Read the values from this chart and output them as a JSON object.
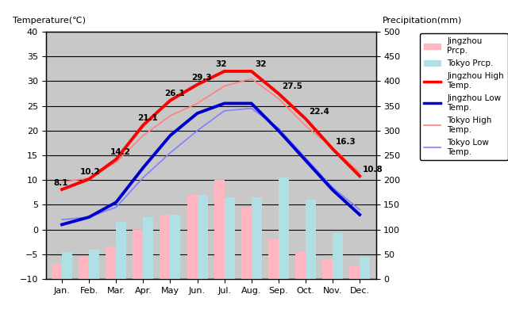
{
  "months": [
    "Jan.",
    "Feb.",
    "Mar.",
    "Apr.",
    "May",
    "Jun.",
    "Jul.",
    "Aug.",
    "Sep.",
    "Oct.",
    "Nov.",
    "Dec."
  ],
  "jingzhou_high": [
    8.1,
    10.2,
    14.2,
    21.1,
    26.1,
    29.3,
    32,
    32,
    27.5,
    22.4,
    16.3,
    10.8
  ],
  "jingzhou_low": [
    1.0,
    2.5,
    5.5,
    12.5,
    19.0,
    23.5,
    25.5,
    25.5,
    20.0,
    14.0,
    8.0,
    3.0
  ],
  "tokyo_high": [
    9.6,
    10.4,
    13.6,
    19.0,
    23.0,
    25.5,
    29.0,
    30.5,
    26.5,
    21.0,
    16.5,
    11.5
  ],
  "tokyo_low": [
    2.0,
    2.5,
    4.5,
    10.5,
    15.5,
    20.0,
    24.0,
    24.5,
    20.5,
    14.5,
    8.5,
    4.0
  ],
  "jingzhou_precip_mm": [
    30,
    45,
    65,
    100,
    130,
    170,
    200,
    145,
    80,
    55,
    40,
    25
  ],
  "tokyo_precip_mm": [
    55,
    60,
    115,
    125,
    130,
    170,
    165,
    165,
    205,
    160,
    93,
    45
  ],
  "labels_high": [
    "8.1",
    "10.2",
    "14.2",
    "21.1",
    "26.1",
    "29.3",
    "32",
    "32",
    "27.5",
    "22.4",
    "16.3",
    "10.8"
  ],
  "title_left": "Temperature(℃)",
  "title_right": "Precipitation(mm)",
  "bg_color": "#c8c8c8",
  "jingzhou_high_color": "#ff0000",
  "jingzhou_low_color": "#0000cc",
  "tokyo_high_color": "#ff8080",
  "tokyo_low_color": "#8080ff",
  "jingzhou_precip_color": "#ffb6c1",
  "tokyo_precip_color": "#b0e0e6",
  "ylim_left": [
    -10,
    40
  ],
  "ylim_right": [
    0,
    500
  ],
  "grid_color": "#888888",
  "line_color": "#000000"
}
